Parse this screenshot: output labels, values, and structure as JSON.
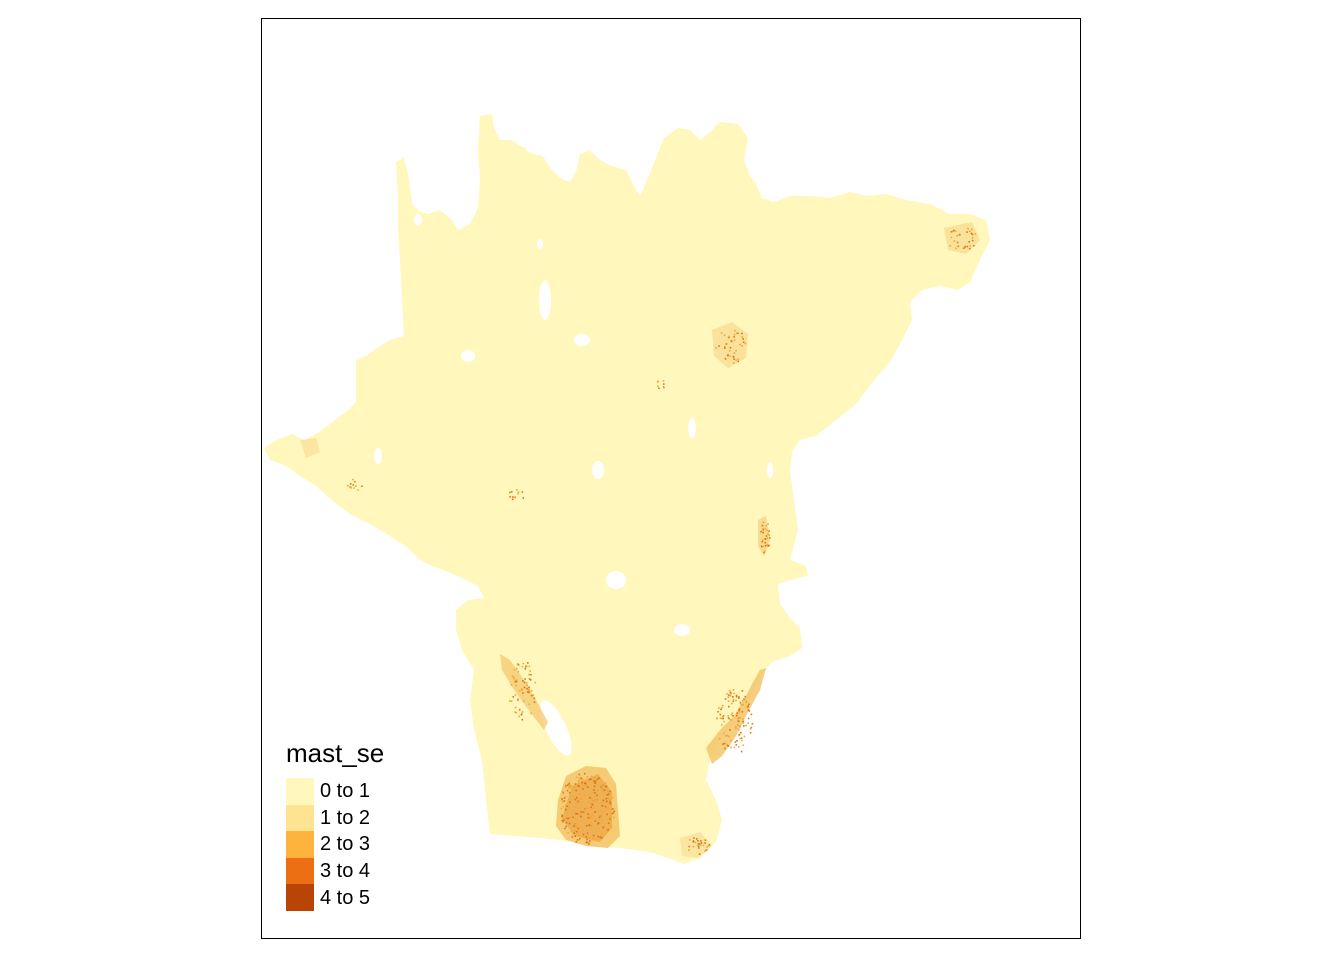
{
  "legend": {
    "title": "mast_se",
    "items": [
      {
        "label": "0 to 1",
        "color": "#FFF7BC"
      },
      {
        "label": "1 to 2",
        "color": "#FEE391"
      },
      {
        "label": "2 to 3",
        "color": "#FEB33C"
      },
      {
        "label": "3 to 4",
        "color": "#EC6F14"
      },
      {
        "label": "4 to 5",
        "color": "#B84405"
      }
    ]
  },
  "colors": {
    "base": "#FFF7BC",
    "speckle_mid": "#F2A73A",
    "speckle_dark": "#D9771A"
  }
}
